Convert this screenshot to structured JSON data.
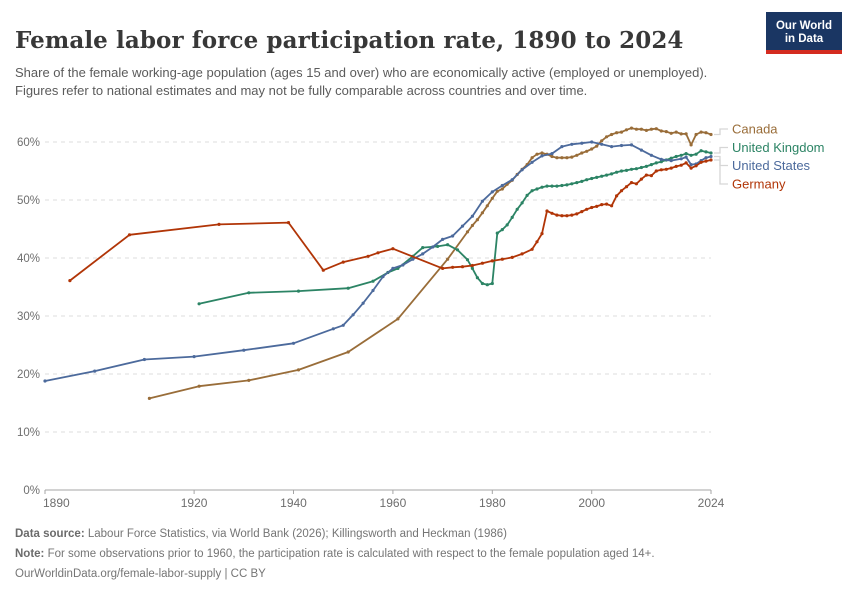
{
  "header": {
    "title": "Female labor force participation rate, 1890 to 2024",
    "subtitle": "Share of the female working-age population (ages 15 and over) who are economically active (employed or unemployed). Figures refer to national estimates and may not be fully comparable across countries and over time.",
    "logo": {
      "line1": "Our World",
      "line2": "in Data",
      "bg_color": "#1a3663",
      "bar_color": "#d42b20"
    }
  },
  "chart_data": {
    "type": "line",
    "title": "Female labor force participation rate, 1890 to 2024",
    "xlabel": "",
    "ylabel": "",
    "xlim": [
      1890,
      2024
    ],
    "ylim": [
      0,
      60
    ],
    "x_ticks": [
      1890,
      1920,
      1940,
      1960,
      1980,
      2000,
      2024
    ],
    "y_ticks": [
      0,
      10,
      20,
      30,
      40,
      50,
      60
    ],
    "y_tick_suffix": "%",
    "grid": "horizontal dashed",
    "legend_position": "right of plot, connected to line ends",
    "series": [
      {
        "name": "Canada",
        "color": "#996D39",
        "points": [
          [
            1911,
            15.8
          ],
          [
            1921,
            17.9
          ],
          [
            1931,
            18.9
          ],
          [
            1941,
            20.7
          ],
          [
            1951,
            23.8
          ],
          [
            1961,
            29.5
          ],
          [
            1971,
            39.8
          ],
          [
            1975,
            44.5
          ],
          [
            1976,
            45.6
          ],
          [
            1977,
            46.6
          ],
          [
            1978,
            47.8
          ],
          [
            1979,
            49.0
          ],
          [
            1980,
            50.3
          ],
          [
            1981,
            51.5
          ],
          [
            1982,
            51.9
          ],
          [
            1983,
            52.7
          ],
          [
            1984,
            53.4
          ],
          [
            1985,
            54.4
          ],
          [
            1986,
            55.3
          ],
          [
            1987,
            56.1
          ],
          [
            1988,
            57.3
          ],
          [
            1989,
            57.9
          ],
          [
            1990,
            58.1
          ],
          [
            1991,
            57.9
          ],
          [
            1992,
            57.5
          ],
          [
            1993,
            57.3
          ],
          [
            1994,
            57.3
          ],
          [
            1995,
            57.3
          ],
          [
            1996,
            57.4
          ],
          [
            1997,
            57.7
          ],
          [
            1998,
            58.1
          ],
          [
            1999,
            58.4
          ],
          [
            2000,
            58.8
          ],
          [
            2001,
            59.3
          ],
          [
            2002,
            60.2
          ],
          [
            2003,
            60.9
          ],
          [
            2004,
            61.3
          ],
          [
            2005,
            61.6
          ],
          [
            2006,
            61.7
          ],
          [
            2007,
            62.1
          ],
          [
            2008,
            62.4
          ],
          [
            2009,
            62.2
          ],
          [
            2010,
            62.2
          ],
          [
            2011,
            62.0
          ],
          [
            2012,
            62.2
          ],
          [
            2013,
            62.3
          ],
          [
            2014,
            61.9
          ],
          [
            2015,
            61.8
          ],
          [
            2016,
            61.5
          ],
          [
            2017,
            61.7
          ],
          [
            2018,
            61.4
          ],
          [
            2019,
            61.4
          ],
          [
            2020,
            59.5
          ],
          [
            2021,
            61.3
          ],
          [
            2022,
            61.7
          ],
          [
            2023,
            61.6
          ],
          [
            2024,
            61.3
          ]
        ]
      },
      {
        "name": "United Kingdom",
        "color": "#2C8465",
        "points": [
          [
            1921,
            32.1
          ],
          [
            1931,
            34.0
          ],
          [
            1941,
            34.3
          ],
          [
            1951,
            34.8
          ],
          [
            1956,
            36.0
          ],
          [
            1959,
            37.5
          ],
          [
            1961,
            38.2
          ],
          [
            1964,
            40.3
          ],
          [
            1966,
            41.8
          ],
          [
            1969,
            42.0
          ],
          [
            1971,
            42.3
          ],
          [
            1973,
            41.4
          ],
          [
            1975,
            39.7
          ],
          [
            1976,
            38.2
          ],
          [
            1977,
            36.6
          ],
          [
            1978,
            35.6
          ],
          [
            1979,
            35.4
          ],
          [
            1980,
            35.6
          ],
          [
            1981,
            44.3
          ],
          [
            1982,
            44.9
          ],
          [
            1983,
            45.7
          ],
          [
            1984,
            47.0
          ],
          [
            1985,
            48.4
          ],
          [
            1986,
            49.5
          ],
          [
            1987,
            50.8
          ],
          [
            1988,
            51.6
          ],
          [
            1989,
            51.9
          ],
          [
            1990,
            52.2
          ],
          [
            1991,
            52.4
          ],
          [
            1992,
            52.4
          ],
          [
            1993,
            52.4
          ],
          [
            1994,
            52.5
          ],
          [
            1995,
            52.6
          ],
          [
            1996,
            52.8
          ],
          [
            1997,
            53.0
          ],
          [
            1998,
            53.2
          ],
          [
            1999,
            53.5
          ],
          [
            2000,
            53.7
          ],
          [
            2001,
            53.9
          ],
          [
            2002,
            54.1
          ],
          [
            2003,
            54.3
          ],
          [
            2004,
            54.5
          ],
          [
            2005,
            54.8
          ],
          [
            2006,
            55.0
          ],
          [
            2007,
            55.1
          ],
          [
            2008,
            55.3
          ],
          [
            2009,
            55.4
          ],
          [
            2010,
            55.6
          ],
          [
            2011,
            55.8
          ],
          [
            2012,
            56.1
          ],
          [
            2013,
            56.4
          ],
          [
            2014,
            56.6
          ],
          [
            2015,
            56.9
          ],
          [
            2016,
            57.2
          ],
          [
            2017,
            57.5
          ],
          [
            2018,
            57.7
          ],
          [
            2019,
            58.0
          ],
          [
            2020,
            57.7
          ],
          [
            2021,
            57.9
          ],
          [
            2022,
            58.5
          ],
          [
            2023,
            58.3
          ],
          [
            2024,
            58.1
          ]
        ]
      },
      {
        "name": "United States",
        "color": "#4C6A9C",
        "points": [
          [
            1890,
            18.8
          ],
          [
            1900,
            20.5
          ],
          [
            1910,
            22.5
          ],
          [
            1920,
            23.0
          ],
          [
            1930,
            24.1
          ],
          [
            1940,
            25.3
          ],
          [
            1948,
            27.8
          ],
          [
            1950,
            28.4
          ],
          [
            1952,
            30.2
          ],
          [
            1954,
            32.2
          ],
          [
            1956,
            34.4
          ],
          [
            1958,
            36.8
          ],
          [
            1960,
            38.2
          ],
          [
            1962,
            38.8
          ],
          [
            1964,
            39.8
          ],
          [
            1966,
            40.7
          ],
          [
            1968,
            41.9
          ],
          [
            1970,
            43.2
          ],
          [
            1972,
            43.8
          ],
          [
            1974,
            45.5
          ],
          [
            1976,
            47.2
          ],
          [
            1978,
            49.8
          ],
          [
            1980,
            51.4
          ],
          [
            1982,
            52.5
          ],
          [
            1984,
            53.5
          ],
          [
            1986,
            55.2
          ],
          [
            1988,
            56.5
          ],
          [
            1990,
            57.6
          ],
          [
            1992,
            58.0
          ],
          [
            1994,
            59.2
          ],
          [
            1996,
            59.6
          ],
          [
            1998,
            59.8
          ],
          [
            2000,
            60.0
          ],
          [
            2002,
            59.6
          ],
          [
            2004,
            59.2
          ],
          [
            2006,
            59.4
          ],
          [
            2008,
            59.5
          ],
          [
            2010,
            58.6
          ],
          [
            2012,
            57.7
          ],
          [
            2014,
            57.0
          ],
          [
            2016,
            56.8
          ],
          [
            2018,
            57.1
          ],
          [
            2019,
            57.4
          ],
          [
            2020,
            56.1
          ],
          [
            2021,
            56.2
          ],
          [
            2022,
            56.8
          ],
          [
            2023,
            57.3
          ],
          [
            2024,
            57.5
          ]
        ]
      },
      {
        "name": "Germany",
        "color": "#B13507",
        "points": [
          [
            1895,
            36.1
          ],
          [
            1907,
            44.0
          ],
          [
            1925,
            45.8
          ],
          [
            1939,
            46.1
          ],
          [
            1946,
            37.9
          ],
          [
            1950,
            39.3
          ],
          [
            1955,
            40.3
          ],
          [
            1957,
            40.9
          ],
          [
            1960,
            41.6
          ],
          [
            1970,
            38.2
          ],
          [
            1972,
            38.4
          ],
          [
            1974,
            38.5
          ],
          [
            1976,
            38.7
          ],
          [
            1978,
            39.1
          ],
          [
            1980,
            39.5
          ],
          [
            1982,
            39.8
          ],
          [
            1984,
            40.1
          ],
          [
            1986,
            40.7
          ],
          [
            1988,
            41.5
          ],
          [
            1989,
            42.8
          ],
          [
            1990,
            44.2
          ],
          [
            1991,
            48.1
          ],
          [
            1992,
            47.7
          ],
          [
            1993,
            47.4
          ],
          [
            1994,
            47.3
          ],
          [
            1995,
            47.3
          ],
          [
            1996,
            47.4
          ],
          [
            1997,
            47.6
          ],
          [
            1998,
            48.0
          ],
          [
            1999,
            48.4
          ],
          [
            2000,
            48.7
          ],
          [
            2001,
            48.9
          ],
          [
            2002,
            49.2
          ],
          [
            2003,
            49.3
          ],
          [
            2004,
            49.0
          ],
          [
            2005,
            50.7
          ],
          [
            2006,
            51.6
          ],
          [
            2007,
            52.3
          ],
          [
            2008,
            53.0
          ],
          [
            2009,
            52.8
          ],
          [
            2010,
            53.6
          ],
          [
            2011,
            54.3
          ],
          [
            2012,
            54.2
          ],
          [
            2013,
            55.0
          ],
          [
            2014,
            55.2
          ],
          [
            2015,
            55.3
          ],
          [
            2016,
            55.5
          ],
          [
            2017,
            55.8
          ],
          [
            2018,
            56.0
          ],
          [
            2019,
            56.4
          ],
          [
            2020,
            55.5
          ],
          [
            2021,
            55.9
          ],
          [
            2022,
            56.5
          ],
          [
            2023,
            56.7
          ],
          [
            2024,
            56.9
          ]
        ]
      }
    ]
  },
  "footer": {
    "data_source_label": "Data source:",
    "data_source_text": "Labour Force Statistics, via World Bank (2026); Killingsworth and Heckman (1986)",
    "note_label": "Note:",
    "note_text": "For some observations prior to 1960, the participation rate is calculated with respect to the female population aged 14+.",
    "link": "OurWorldinData.org/female-labor-supply",
    "separator": "|",
    "license": "CC BY"
  }
}
